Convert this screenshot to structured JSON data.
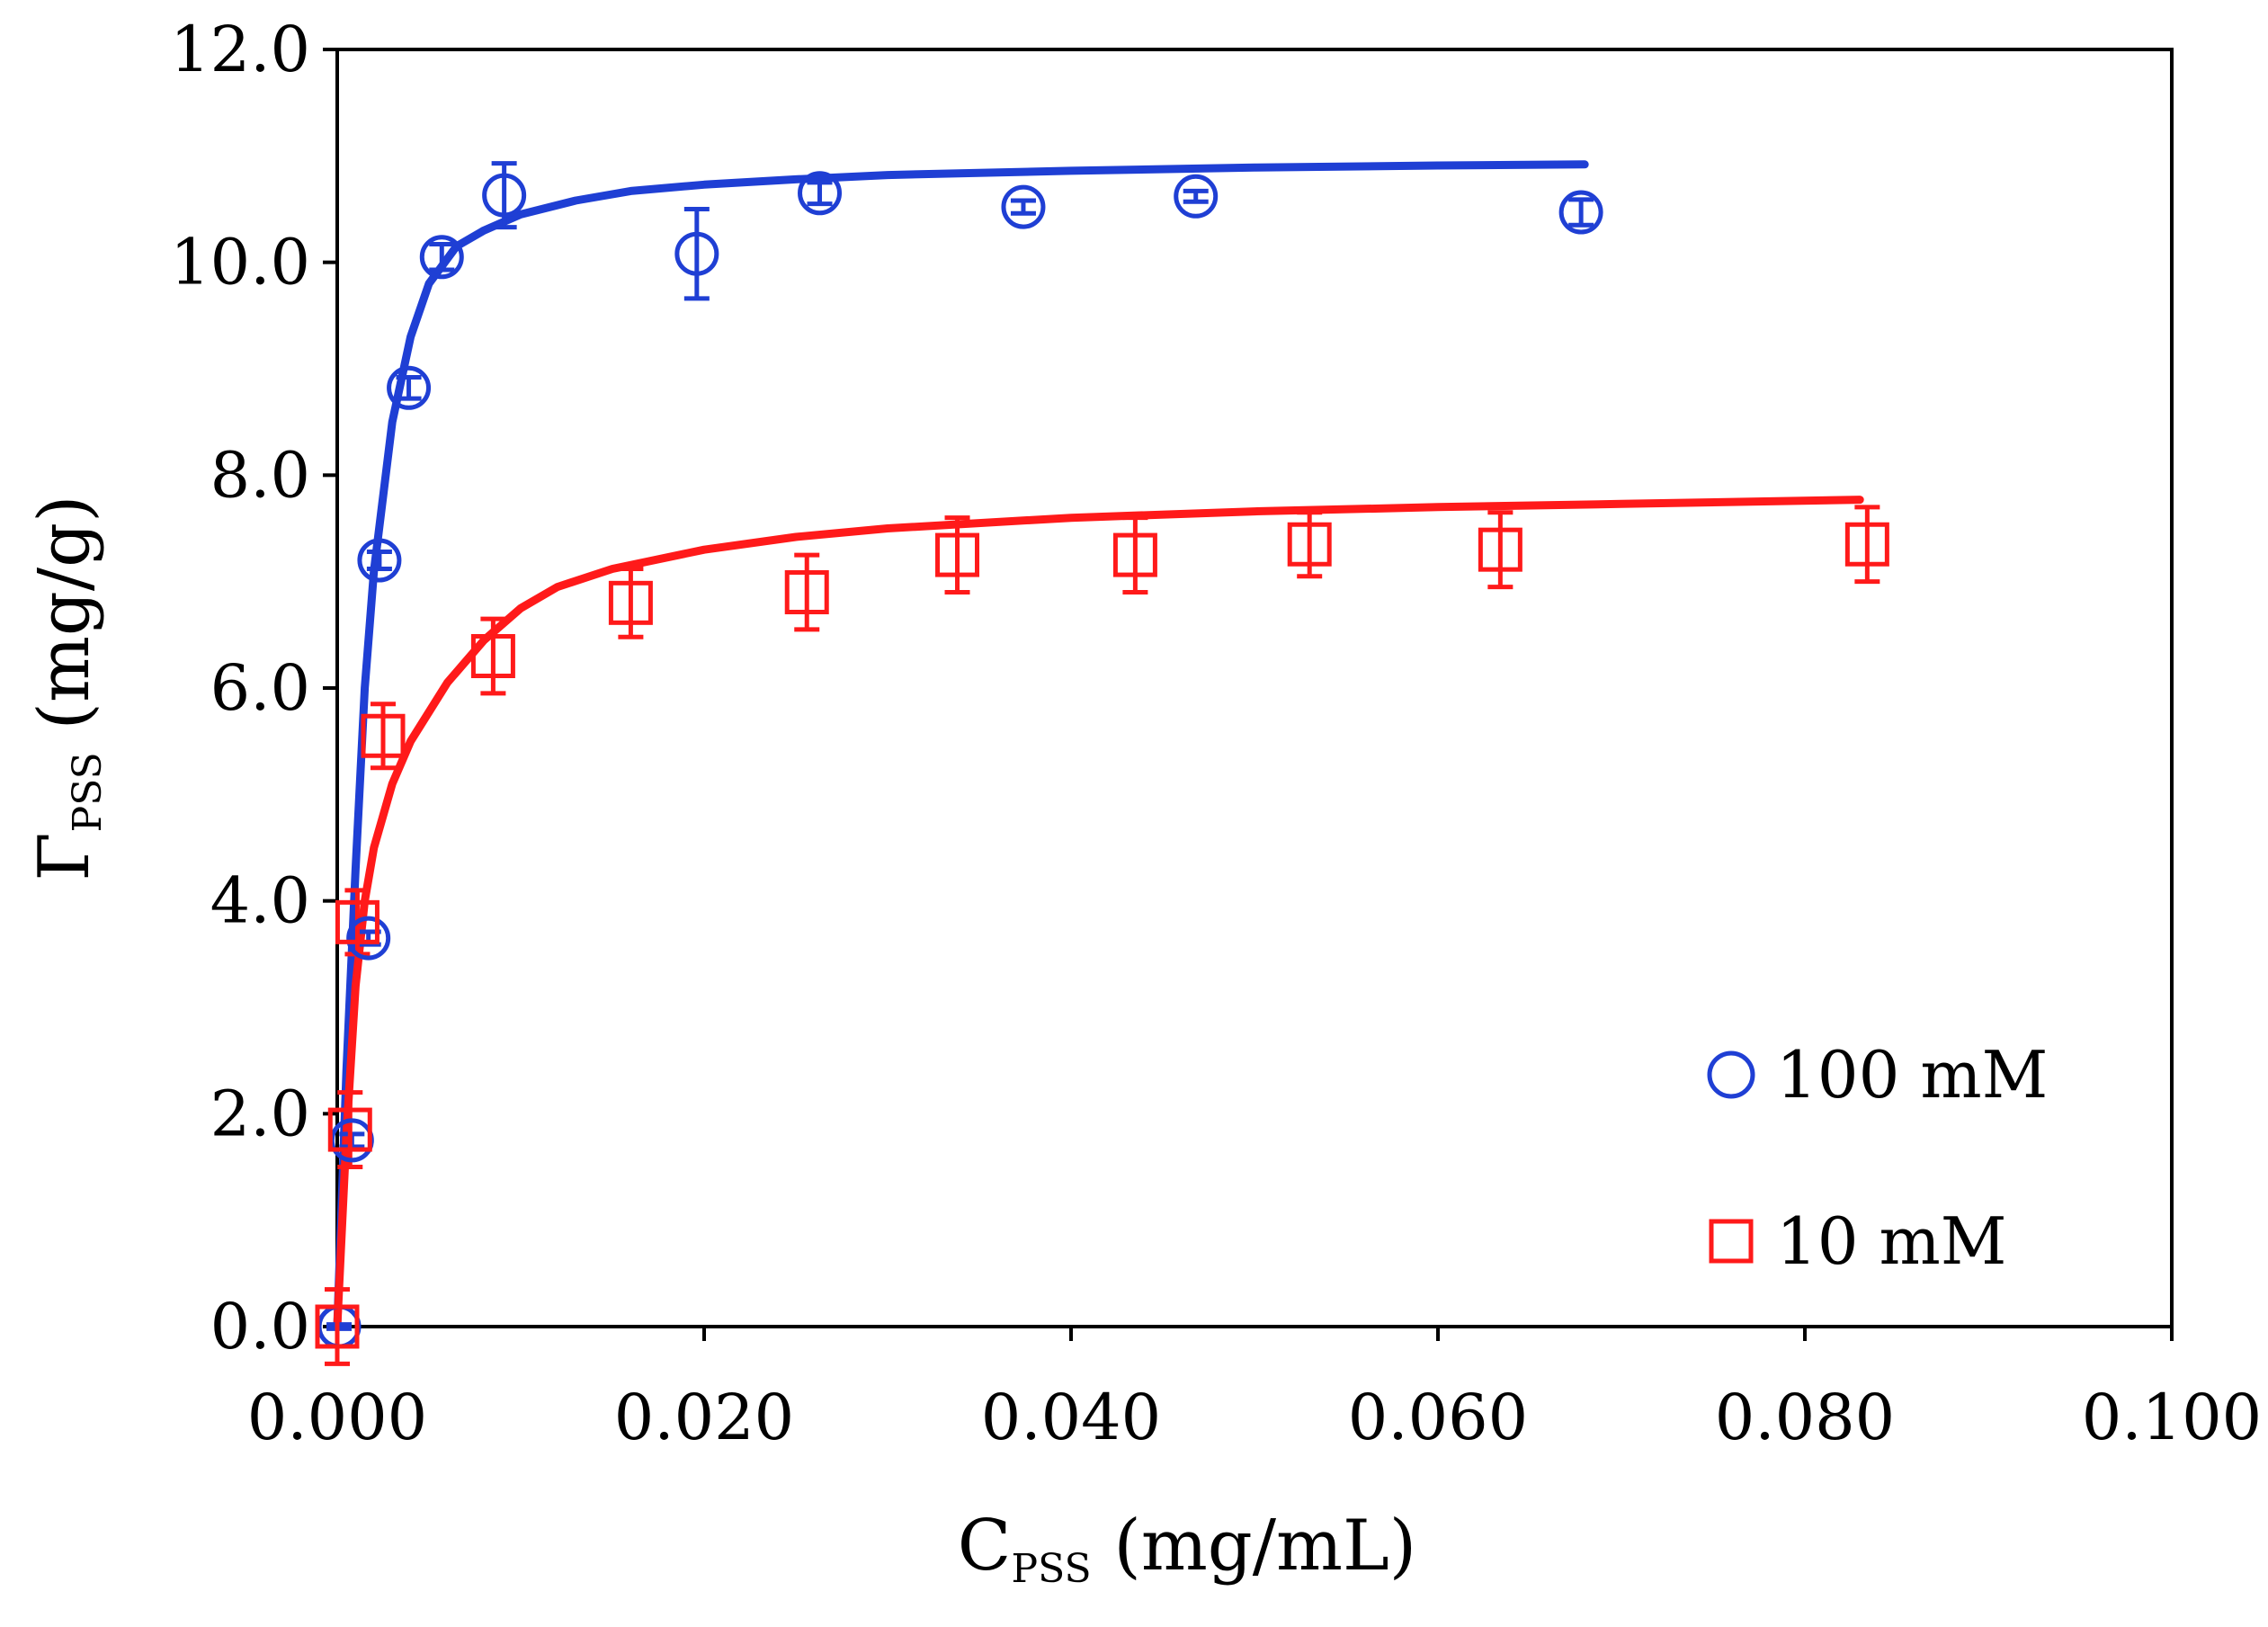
{
  "chart_data": {
    "type": "scatter",
    "title": "",
    "xlabel": {
      "main": "C",
      "sub": "PSS",
      "unit": " (mg/mL)"
    },
    "ylabel": {
      "main": "Γ",
      "sub": "PSS",
      "unit": " (mg/g)"
    },
    "xlim": [
      0,
      0.1
    ],
    "ylim": [
      0,
      12
    ],
    "xticks": [
      "0.000",
      "0.020",
      "0.040",
      "0.060",
      "0.080",
      "0.100"
    ],
    "yticks": [
      "0.0",
      "2.0",
      "4.0",
      "6.0",
      "8.0",
      "10.0",
      "12.0"
    ],
    "grid": false,
    "legend_position": "bottom-right",
    "series": [
      {
        "name": "100 mM",
        "marker": "circle",
        "color": "#1f3fd4",
        "x": [
          0.0001,
          0.0008,
          0.0017,
          0.0023,
          0.0039,
          0.0057,
          0.0091,
          0.0196,
          0.0263,
          0.0374,
          0.0468,
          0.0678
        ],
        "y": [
          0.0,
          1.75,
          3.65,
          7.2,
          8.82,
          10.05,
          10.63,
          10.08,
          10.65,
          10.52,
          10.62,
          10.47
        ],
        "err": [
          0.02,
          0.06,
          0.06,
          0.08,
          0.1,
          0.12,
          0.3,
          0.42,
          0.1,
          0.06,
          0.05,
          0.12
        ],
        "fit": {
          "x": [
            0,
            0.0005,
            0.001,
            0.0015,
            0.002,
            0.003,
            0.004,
            0.005,
            0.0065,
            0.008,
            0.01,
            0.013,
            0.016,
            0.02,
            0.025,
            0.03,
            0.04,
            0.05,
            0.06,
            0.068
          ],
          "y": [
            0,
            2.4,
            4.3,
            6.0,
            7.1,
            8.5,
            9.3,
            9.8,
            10.15,
            10.3,
            10.45,
            10.58,
            10.67,
            10.73,
            10.78,
            10.82,
            10.86,
            10.89,
            10.91,
            10.92
          ]
        }
      },
      {
        "name": "10 mM",
        "marker": "square",
        "color": "#ff1a1a",
        "x": [
          0.0,
          0.0007,
          0.0011,
          0.0025,
          0.0085,
          0.016,
          0.0256,
          0.0338,
          0.0435,
          0.053,
          0.0634,
          0.0834
        ],
        "y": [
          0.0,
          1.85,
          3.8,
          5.55,
          6.3,
          6.8,
          6.9,
          7.25,
          7.25,
          7.35,
          7.3,
          7.35
        ],
        "err": [
          0.35,
          0.35,
          0.3,
          0.3,
          0.35,
          0.32,
          0.35,
          0.35,
          0.35,
          0.3,
          0.35,
          0.35
        ],
        "fit": {
          "x": [
            0,
            0.0005,
            0.001,
            0.0015,
            0.002,
            0.003,
            0.004,
            0.006,
            0.008,
            0.01,
            0.012,
            0.015,
            0.02,
            0.025,
            0.03,
            0.04,
            0.05,
            0.06,
            0.07,
            0.083
          ],
          "y": [
            0,
            1.8,
            3.2,
            4.0,
            4.5,
            5.1,
            5.5,
            6.05,
            6.45,
            6.75,
            6.95,
            7.12,
            7.3,
            7.42,
            7.5,
            7.6,
            7.66,
            7.7,
            7.73,
            7.77
          ]
        }
      }
    ]
  }
}
